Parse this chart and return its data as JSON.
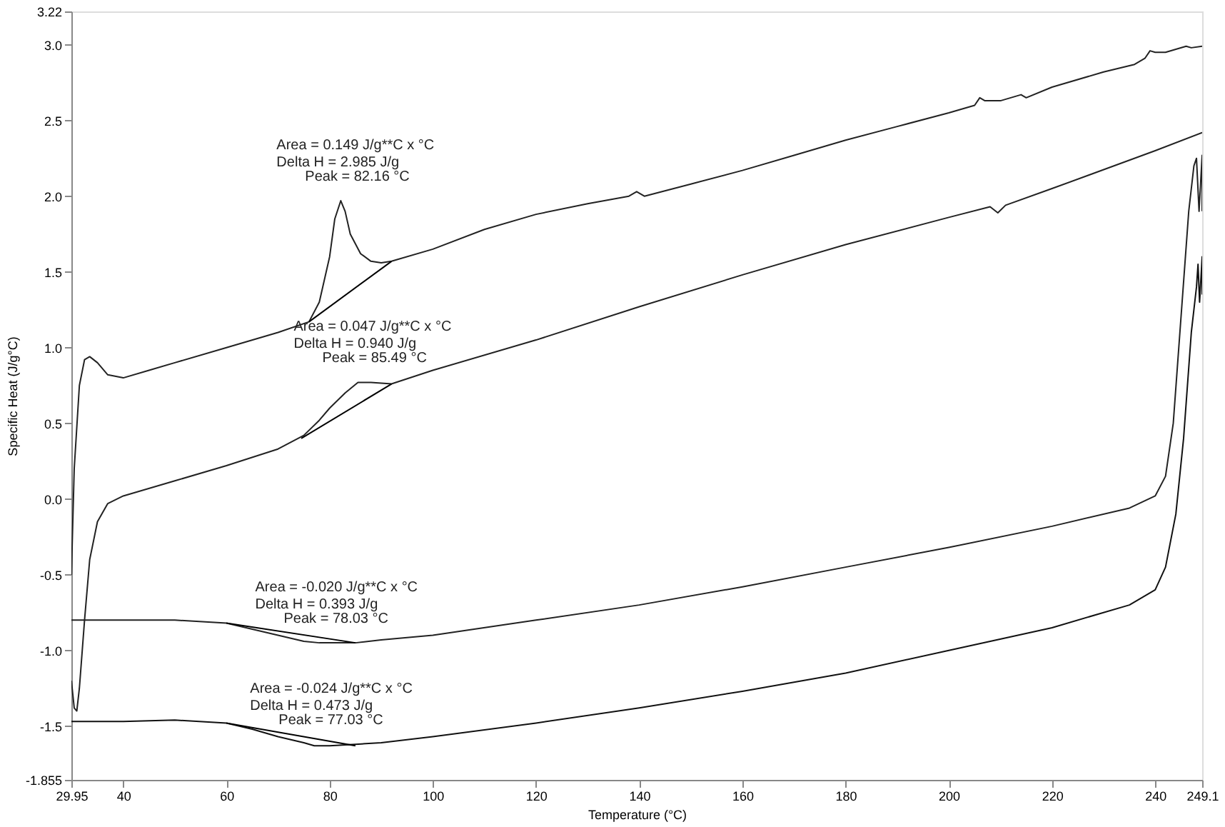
{
  "chart_data": {
    "type": "line",
    "xlabel": "Temperature (°C)",
    "ylabel": "Specific Heat (J/g°C)",
    "xlim": [
      29.95,
      249.1
    ],
    "xticks": [
      29.95,
      40,
      60,
      80,
      100,
      120,
      140,
      160,
      180,
      200,
      220,
      240,
      249.1
    ],
    "ylim": [
      -1.855,
      3.22
    ],
    "yticks": [
      {
        "value": -1.855,
        "label": "-1.855"
      },
      {
        "value": -1.5,
        "label": "-1.5"
      },
      {
        "value": -1.0,
        "label": "-1.0"
      },
      {
        "value": -0.5,
        "label": "-0.5"
      },
      {
        "value": 0.0,
        "label": "0.0"
      },
      {
        "value": 0.5,
        "label": "0.5"
      },
      {
        "value": 1.0,
        "label": "1.0"
      },
      {
        "value": 1.5,
        "label": "1.5"
      },
      {
        "value": 2.0,
        "label": "2.0"
      },
      {
        "value": 2.5,
        "label": "2.5"
      },
      {
        "value": 3.0,
        "label": "3.0"
      },
      {
        "value": 3.22,
        "label": "3.22"
      }
    ],
    "grid": false,
    "marker": "none",
    "line_style": "solid",
    "series": [
      {
        "color": "#222222",
        "x": [
          29.95,
          30.5,
          31.5,
          32.5,
          33.5,
          35,
          37,
          40,
          45,
          50,
          60,
          70,
          76,
          78,
          80,
          81,
          82.16,
          83,
          84,
          86,
          88,
          90,
          92,
          100,
          110,
          120,
          130,
          138,
          139.5,
          141,
          150,
          160,
          170,
          180,
          190,
          200,
          205,
          206,
          207,
          210,
          214,
          215,
          220,
          230,
          236,
          238,
          239,
          240,
          242,
          244,
          246,
          247,
          249.1
        ],
        "values": [
          -0.5,
          0.2,
          0.75,
          0.92,
          0.94,
          0.9,
          0.82,
          0.8,
          0.85,
          0.9,
          1.0,
          1.1,
          1.17,
          1.3,
          1.6,
          1.85,
          1.97,
          1.9,
          1.75,
          1.62,
          1.57,
          1.56,
          1.57,
          1.65,
          1.78,
          1.88,
          1.95,
          2.0,
          2.03,
          2.0,
          2.08,
          2.17,
          2.27,
          2.37,
          2.46,
          2.55,
          2.6,
          2.65,
          2.63,
          2.63,
          2.67,
          2.65,
          2.72,
          2.82,
          2.87,
          2.91,
          2.96,
          2.95,
          2.95,
          2.97,
          2.99,
          2.98,
          2.99
        ]
      },
      {
        "color": "#222222",
        "x": [
          29.95,
          30.5,
          31,
          31.5,
          32.5,
          33.5,
          35,
          37,
          40,
          50,
          60,
          70,
          75,
          78,
          80,
          83,
          85.49,
          88,
          92,
          100,
          120,
          140,
          160,
          180,
          200,
          208,
          209.5,
          211,
          220,
          240,
          249.1
        ],
        "values": [
          -1.2,
          -1.38,
          -1.4,
          -1.25,
          -0.8,
          -0.4,
          -0.15,
          -0.03,
          0.02,
          0.12,
          0.22,
          0.33,
          0.42,
          0.52,
          0.6,
          0.7,
          0.77,
          0.77,
          0.76,
          0.85,
          1.05,
          1.27,
          1.48,
          1.68,
          1.86,
          1.93,
          1.89,
          1.94,
          2.05,
          2.3,
          2.42
        ]
      },
      {
        "color": "#222222",
        "x": [
          29.95,
          31,
          40,
          50,
          60,
          65,
          70,
          75,
          78.03,
          80,
          85,
          90,
          100,
          120,
          140,
          160,
          180,
          200,
          220,
          235,
          240,
          242,
          243.5,
          245,
          246.5,
          247.5,
          248,
          248.5,
          249.1,
          249.1
        ],
        "values": [
          -0.8,
          -0.8,
          -0.8,
          -0.8,
          -0.82,
          -0.86,
          -0.9,
          -0.94,
          -0.95,
          -0.95,
          -0.95,
          -0.93,
          -0.9,
          -0.8,
          -0.7,
          -0.58,
          -0.45,
          -0.32,
          -0.18,
          -0.06,
          0.02,
          0.15,
          0.5,
          1.2,
          1.9,
          2.2,
          2.25,
          1.9,
          2.27,
          1.9
        ]
      },
      {
        "color": "#111111",
        "x": [
          29.95,
          40,
          50,
          60,
          65,
          70,
          75,
          77.03,
          80,
          85,
          90,
          100,
          120,
          140,
          160,
          180,
          200,
          220,
          235,
          240,
          242,
          244,
          245.5,
          247,
          248,
          248.3,
          248.6,
          249.1,
          249.1
        ],
        "values": [
          -1.47,
          -1.47,
          -1.46,
          -1.48,
          -1.52,
          -1.57,
          -1.61,
          -1.63,
          -1.63,
          -1.62,
          -1.61,
          -1.57,
          -1.48,
          -1.38,
          -1.27,
          -1.15,
          -1.0,
          -0.85,
          -0.7,
          -0.6,
          -0.45,
          -0.1,
          0.4,
          1.1,
          1.4,
          1.55,
          1.3,
          1.6,
          1.35
        ]
      },
      {
        "color": "#000000",
        "x": [
          76,
          92
        ],
        "values": [
          1.17,
          1.57
        ]
      },
      {
        "color": "#000000",
        "x": [
          74.5,
          92
        ],
        "values": [
          0.4,
          0.76
        ]
      },
      {
        "color": "#000000",
        "x": [
          60,
          85
        ],
        "values": [
          -0.82,
          -0.95
        ]
      },
      {
        "color": "#000000",
        "x": [
          60,
          85
        ],
        "values": [
          -1.48,
          -1.63
        ]
      }
    ],
    "annotations": [
      {
        "text": "Area = 0.149 J/g**C x °C\nDelta H = 2.985 J/g",
        "x": 82.16,
        "y": 1.97
      },
      {
        "text": "Peak = 82.16 °C",
        "x": 82.16,
        "y": 1.97
      },
      {
        "text": "Area = 0.047 J/g**C x °C\nDelta H = 0.940 J/g",
        "x": 85.49,
        "y": 0.77
      },
      {
        "text": "Peak = 85.49 °C",
        "x": 85.49,
        "y": 0.77
      },
      {
        "text": "Area = -0.020 J/g**C x °C\nDelta H = 0.393 J/g",
        "x": 78.03,
        "y": -0.95
      },
      {
        "text": "Peak = 78.03 °C",
        "x": 78.03,
        "y": -0.95
      },
      {
        "text": "Area = -0.024 J/g**C x °C\nDelta H = 0.473 J/g",
        "x": 77.03,
        "y": -1.62
      },
      {
        "text": "Peak = 77.03 °C",
        "x": 77.03,
        "y": -1.62
      }
    ]
  }
}
